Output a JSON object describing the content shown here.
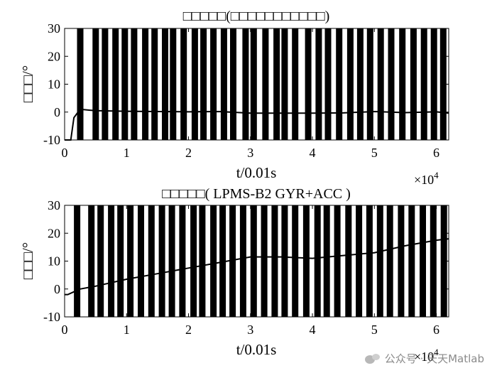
{
  "chart_data": [
    {
      "type": "line",
      "title": "□□□□□(□□□□□□□□□□□)",
      "xlabel": "t/0.01s",
      "ylabel": "□□□/°",
      "xlim": [
        0,
        62000
      ],
      "ylim": [
        -10,
        30
      ],
      "x_ticks": [
        0,
        1,
        2,
        3,
        4,
        5,
        6
      ],
      "x_tick_labels": [
        "0",
        "1",
        "2",
        "3",
        "4",
        "5",
        "6"
      ],
      "x_exponent_label": "×10",
      "x_exponent_power": "4",
      "y_ticks": [
        -10,
        0,
        10,
        20,
        30
      ],
      "y_tick_labels": [
        "-10",
        "0",
        "10",
        "20",
        "30"
      ],
      "grid": false,
      "series": [
        {
          "color": "#000000",
          "x": [
            0,
            1000,
            1500,
            2500,
            5000,
            10000,
            15000,
            20000,
            25000,
            30000,
            35000,
            40000,
            45000,
            50000,
            55000,
            60000,
            62000
          ],
          "y": [
            -10,
            -10,
            -2,
            1,
            0.5,
            0.3,
            0.2,
            0.1,
            0.2,
            -0.4,
            -0.4,
            -0.4,
            -0.3,
            0.2,
            -0.2,
            0.1,
            -0.4
          ]
        }
      ],
      "band_x": [
        2000,
        4500,
        6000,
        7700,
        9200,
        10700,
        12500,
        14000,
        15700,
        17000,
        18700,
        20500,
        21900,
        23500,
        25200,
        26700,
        28700,
        30000,
        31900,
        33700,
        35000,
        36700,
        38800,
        40500,
        42000,
        43800,
        45600,
        47200,
        48800,
        50500,
        52200,
        54000,
        55800,
        57500,
        59100,
        60600
      ]
    },
    {
      "type": "line",
      "title": "□□□□□( LPMS-B2 GYR+ACC )",
      "xlabel": "t/0.01s",
      "ylabel": "□□□/°",
      "xlim": [
        0,
        62000
      ],
      "ylim": [
        -10,
        30
      ],
      "x_ticks": [
        0,
        1,
        2,
        3,
        4,
        5,
        6
      ],
      "x_tick_labels": [
        "0",
        "1",
        "2",
        "3",
        "4",
        "5",
        "6"
      ],
      "x_exponent_label": "×10",
      "x_exponent_power": "4",
      "y_ticks": [
        -10,
        0,
        10,
        20,
        30
      ],
      "y_tick_labels": [
        "-10",
        "0",
        "10",
        "20",
        "30"
      ],
      "grid": false,
      "series": [
        {
          "color": "#000000",
          "x": [
            0,
            500,
            1500,
            2500,
            5000,
            10000,
            15000,
            20000,
            25000,
            30000,
            35000,
            40000,
            45000,
            50000,
            55000,
            60000,
            62000
          ],
          "y": [
            -2,
            -2,
            -1,
            0,
            1,
            3.5,
            5.5,
            7.5,
            9.5,
            11.5,
            11.5,
            11,
            12,
            13,
            15.5,
            17.5,
            18
          ]
        }
      ],
      "band_x": [
        1500,
        3800,
        5300,
        7000,
        8500,
        10100,
        11800,
        13500,
        15200,
        16800,
        18500,
        20300,
        21700,
        23500,
        25000,
        26600,
        28300,
        30000,
        31700,
        33400,
        35000,
        36700,
        38500,
        40300,
        41800,
        43500,
        45300,
        47000,
        48700,
        50400,
        52000,
        53800,
        55500,
        57300,
        59000,
        60700
      ]
    }
  ],
  "watermark": {
    "icon": "wechat-icon",
    "text": "公众号 · 天天Matlab"
  }
}
